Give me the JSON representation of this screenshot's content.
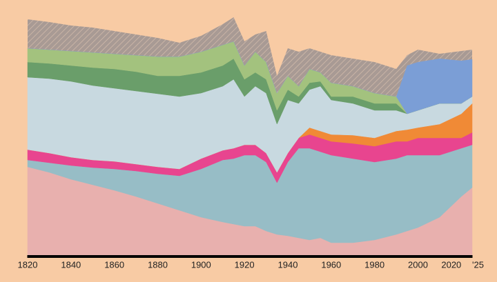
{
  "chart_data": {
    "type": "stacked-area",
    "x": [
      1820,
      1830,
      1840,
      1850,
      1860,
      1870,
      1880,
      1890,
      1900,
      1910,
      1915,
      1920,
      1925,
      1930,
      1935,
      1940,
      1945,
      1950,
      1955,
      1960,
      1970,
      1980,
      1990,
      1995,
      2000,
      2010,
      2020,
      2025
    ],
    "xlim": [
      1820,
      2025
    ],
    "xticks": [
      1820,
      1840,
      1860,
      1880,
      1900,
      1920,
      1940,
      1960,
      1980,
      2000,
      2020,
      {
        "value": 2025,
        "label": "'25"
      }
    ],
    "ylim": [
      0,
      360
    ],
    "series": [
      {
        "color": "#e8b0ae",
        "values": [
          128,
          120,
          110,
          102,
          94,
          85,
          75,
          65,
          55,
          48,
          45,
          42,
          42,
          35,
          30,
          28,
          25,
          22,
          25,
          18,
          18,
          22,
          30,
          35,
          40,
          55,
          85,
          98
        ]
      },
      {
        "color": "#97bdc6",
        "values": [
          10,
          14,
          20,
          25,
          31,
          37,
          43,
          50,
          70,
          90,
          95,
          103,
          103,
          100,
          75,
          107,
          130,
          133,
          125,
          127,
          122,
          113,
          110,
          110,
          105,
          90,
          70,
          62
        ]
      },
      {
        "color": "#e8458f",
        "values": [
          15,
          14,
          12,
          11,
          11,
          10,
          10,
          10,
          15,
          14,
          15,
          15,
          15,
          13,
          15,
          13,
          15,
          20,
          20,
          20,
          22,
          23,
          25,
          20,
          25,
          25,
          15,
          18
        ]
      },
      {
        "color": "#f08a36",
        "values": [
          0,
          0,
          0,
          0,
          0,
          0,
          0,
          0,
          0,
          0,
          0,
          0,
          0,
          0,
          0,
          0,
          0,
          10,
          10,
          10,
          12,
          12,
          15,
          17,
          15,
          20,
          35,
          42
        ]
      },
      {
        "color": "#c8d9e0",
        "values": [
          105,
          108,
          110,
          108,
          106,
          106,
          106,
          105,
          95,
          93,
          100,
          70,
          85,
          87,
          70,
          77,
          50,
          55,
          65,
          50,
          46,
          40,
          30,
          23,
          25,
          30,
          15,
          10
        ]
      },
      {
        "color": "#6a9e6a",
        "values": [
          22,
          22,
          23,
          26,
          28,
          28,
          26,
          30,
          30,
          30,
          30,
          25,
          20,
          20,
          20,
          15,
          10,
          10,
          7,
          5,
          10,
          10,
          10,
          0,
          0,
          0,
          0,
          0
        ]
      },
      {
        "color": "#a3c27e",
        "values": [
          20,
          20,
          21,
          22,
          22,
          24,
          28,
          28,
          30,
          30,
          25,
          20,
          30,
          25,
          25,
          20,
          15,
          20,
          13,
          20,
          15,
          15,
          10,
          0,
          0,
          0,
          0,
          0
        ]
      },
      {
        "color": "#7b9ed6",
        "values": [
          0,
          0,
          0,
          0,
          0,
          0,
          0,
          0,
          0,
          0,
          0,
          0,
          0,
          0,
          0,
          0,
          0,
          0,
          0,
          0,
          0,
          0,
          0,
          70,
          70,
          65,
          62,
          54
        ]
      },
      {
        "color": "#a89a94",
        "values": [
          42,
          40,
          37,
          36,
          33,
          30,
          27,
          20,
          23,
          30,
          35,
          35,
          25,
          45,
          25,
          40,
          50,
          30,
          30,
          40,
          40,
          45,
          40,
          15,
          18,
          7,
          14,
          14
        ]
      }
    ]
  }
}
